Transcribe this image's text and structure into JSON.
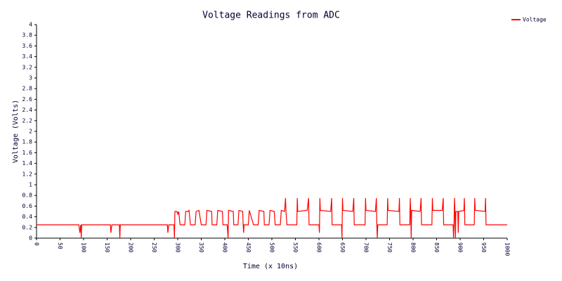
{
  "chart_data": {
    "type": "line",
    "title": "Voltage Readings from ADC",
    "x_label": "Time (x 10ns)",
    "y_label": "Voltage (Volts)",
    "legend": "top-right",
    "grid": false,
    "xlim": [
      0,
      1000
    ],
    "xticks": [
      0,
      50,
      100,
      150,
      200,
      250,
      300,
      350,
      400,
      450,
      500,
      550,
      600,
      650,
      700,
      750,
      800,
      850,
      900,
      950,
      1000
    ],
    "ylim": [
      0,
      4
    ],
    "yticks": [
      0,
      0.2,
      0.4,
      0.6,
      0.8,
      1,
      1.2,
      1.4,
      1.6,
      1.8,
      2,
      2.2,
      2.4,
      2.6,
      2.8,
      3,
      3.2,
      3.4,
      3.6,
      3.8,
      4
    ],
    "x": [
      0,
      90,
      92,
      94,
      95,
      96,
      157,
      158,
      160,
      176,
      177,
      178,
      278,
      279,
      281,
      292,
      293,
      294,
      298,
      300,
      302,
      305,
      315,
      317,
      322,
      324,
      327,
      337,
      339,
      345,
      350,
      360,
      362,
      372,
      373,
      383,
      385,
      395,
      396,
      405,
      407,
      408,
      418,
      419,
      428,
      430,
      438,
      439,
      440,
      441,
      450,
      452,
      461,
      471,
      473,
      483,
      484,
      494,
      496,
      505,
      507,
      518,
      520,
      527,
      529,
      530,
      532,
      553,
      554,
      555,
      575,
      578,
      579,
      600,
      601,
      602,
      603,
      625,
      627,
      628,
      648,
      649,
      650,
      651,
      672,
      674,
      675,
      698,
      699,
      700,
      720,
      722,
      723,
      724,
      725,
      745,
      746,
      747,
      770,
      771,
      772,
      793,
      794,
      795,
      796,
      797,
      815,
      817,
      818,
      840,
      841,
      842,
      862,
      864,
      865,
      885,
      886,
      887,
      888,
      889,
      890,
      891,
      895,
      896,
      897,
      908,
      909,
      910,
      930,
      931,
      932,
      953,
      954,
      955,
      1000
    ],
    "series": [
      {
        "name": "Voltage",
        "color": "#ff0000",
        "values": [
          0.25,
          0.25,
          0.1,
          0.25,
          0,
          0.25,
          0.25,
          0.1,
          0.25,
          0.25,
          0,
          0.25,
          0.25,
          0.1,
          0.25,
          0.25,
          0,
          0.5,
          0.5,
          0.45,
          0.5,
          0.25,
          0.25,
          0.5,
          0.5,
          0.52,
          0.25,
          0.25,
          0.5,
          0.52,
          0.25,
          0.25,
          0.52,
          0.5,
          0.25,
          0.25,
          0.52,
          0.5,
          0.25,
          0.25,
          0,
          0.52,
          0.5,
          0.25,
          0.25,
          0.52,
          0.5,
          0.25,
          0.1,
          0.25,
          0.25,
          0.52,
          0.25,
          0.25,
          0.52,
          0.5,
          0.25,
          0.25,
          0.52,
          0.5,
          0.25,
          0.25,
          0.52,
          0.5,
          0.75,
          0.5,
          0.25,
          0.25,
          0.75,
          0.5,
          0.52,
          0.75,
          0.25,
          0.25,
          0.1,
          0.75,
          0.52,
          0.5,
          0.75,
          0.25,
          0.25,
          0,
          0.75,
          0.52,
          0.5,
          0.75,
          0.25,
          0.25,
          0.75,
          0.52,
          0.5,
          0.75,
          0.25,
          0,
          0.25,
          0.25,
          0.75,
          0.52,
          0.5,
          0.75,
          0.25,
          0.25,
          0.75,
          0.5,
          0,
          0.52,
          0.5,
          0.75,
          0.25,
          0.25,
          0.75,
          0.52,
          0.52,
          0.75,
          0.25,
          0.25,
          0,
          0.25,
          0.75,
          0.5,
          0,
          0.5,
          0.5,
          0.1,
          0.5,
          0.52,
          0.75,
          0.25,
          0.25,
          0.75,
          0.52,
          0.5,
          0.75,
          0.25,
          0.25
        ]
      }
    ]
  }
}
